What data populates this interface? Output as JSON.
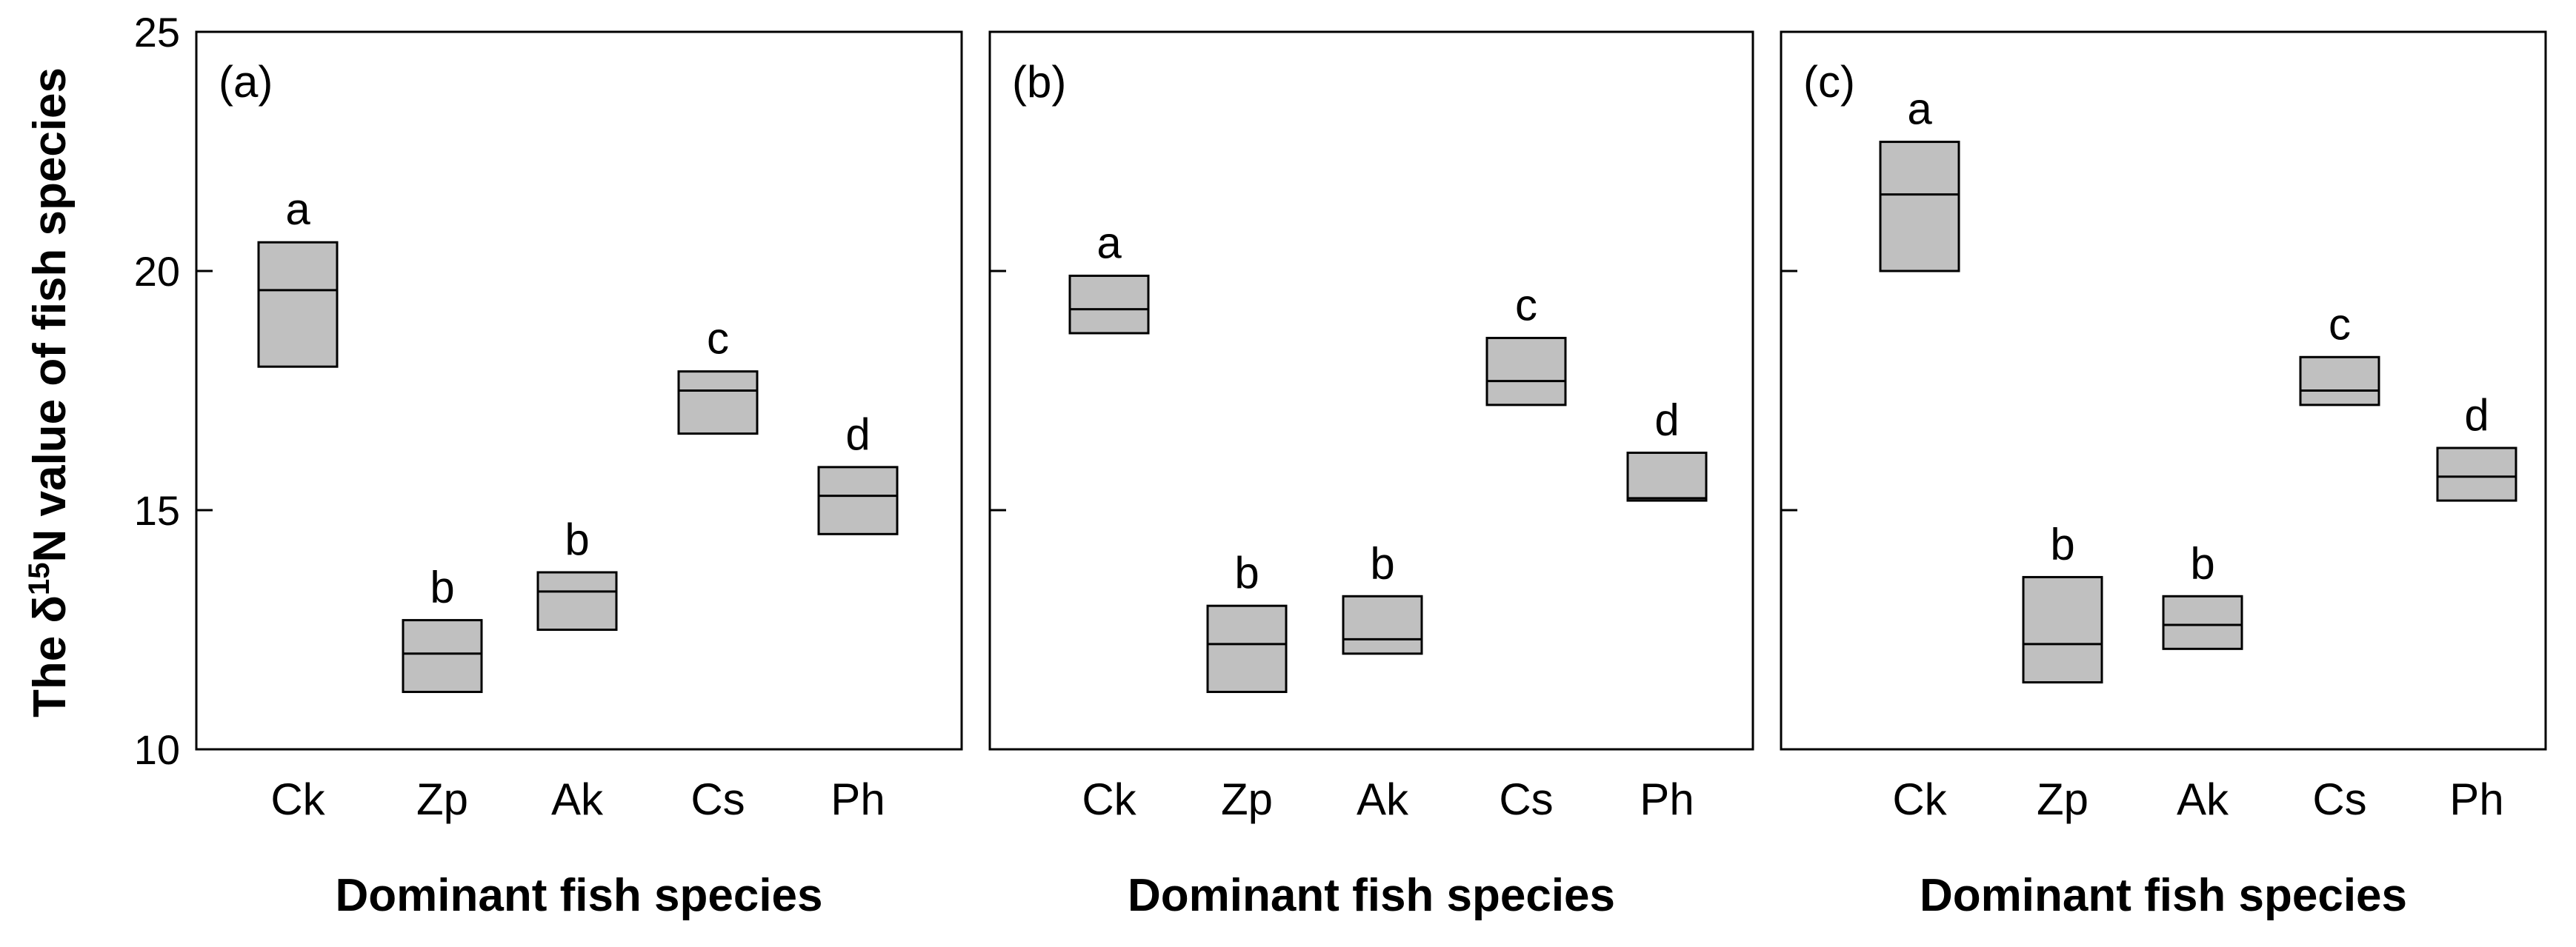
{
  "chart_data": {
    "type": "box",
    "ylabel": "The δ15N value of fish species",
    "ylabel_parts": {
      "prefix": "The δ",
      "sup": "15",
      "suffix": "N value of fish species"
    },
    "ylim": [
      10,
      25
    ],
    "yticks": [
      10,
      15,
      20,
      25
    ],
    "grid": false,
    "panels": [
      {
        "label": "(a)",
        "xlabel": "Dominant fish species",
        "categories": [
          "Ck",
          "Zp",
          "Ak",
          "Cs",
          "Ph"
        ],
        "boxes": [
          {
            "q1": 18.0,
            "median": 19.6,
            "q3": 20.6,
            "group": "a"
          },
          {
            "q1": 11.2,
            "median": 12.0,
            "q3": 12.7,
            "group": "b"
          },
          {
            "q1": 12.5,
            "median": 13.3,
            "q3": 13.7,
            "group": "b"
          },
          {
            "q1": 16.6,
            "median": 17.5,
            "q3": 17.9,
            "group": "c"
          },
          {
            "q1": 14.5,
            "median": 15.3,
            "q3": 15.9,
            "group": "d"
          }
        ]
      },
      {
        "label": "(b)",
        "xlabel": "Dominant fish species",
        "categories": [
          "Ck",
          "Zp",
          "Ak",
          "Cs",
          "Ph"
        ],
        "boxes": [
          {
            "q1": 18.7,
            "median": 19.2,
            "q3": 19.9,
            "group": "a"
          },
          {
            "q1": 11.2,
            "median": 12.2,
            "q3": 13.0,
            "group": "b"
          },
          {
            "q1": 12.0,
            "median": 12.3,
            "q3": 13.2,
            "group": "b"
          },
          {
            "q1": 17.2,
            "median": 17.7,
            "q3": 18.6,
            "group": "c"
          },
          {
            "q1": 15.2,
            "median": 15.25,
            "q3": 16.2,
            "group": "d"
          }
        ]
      },
      {
        "label": "(c)",
        "xlabel": "Dominant fish species",
        "categories": [
          "Ck",
          "Zp",
          "Ak",
          "Cs",
          "Ph"
        ],
        "boxes": [
          {
            "q1": 20.0,
            "median": 21.6,
            "q3": 22.7,
            "group": "a"
          },
          {
            "q1": 11.4,
            "median": 12.2,
            "q3": 13.6,
            "group": "b"
          },
          {
            "q1": 12.1,
            "median": 12.6,
            "q3": 13.2,
            "group": "b"
          },
          {
            "q1": 17.2,
            "median": 17.5,
            "q3": 18.2,
            "group": "c"
          },
          {
            "q1": 15.2,
            "median": 15.7,
            "q3": 16.3,
            "group": "d"
          }
        ]
      }
    ]
  }
}
